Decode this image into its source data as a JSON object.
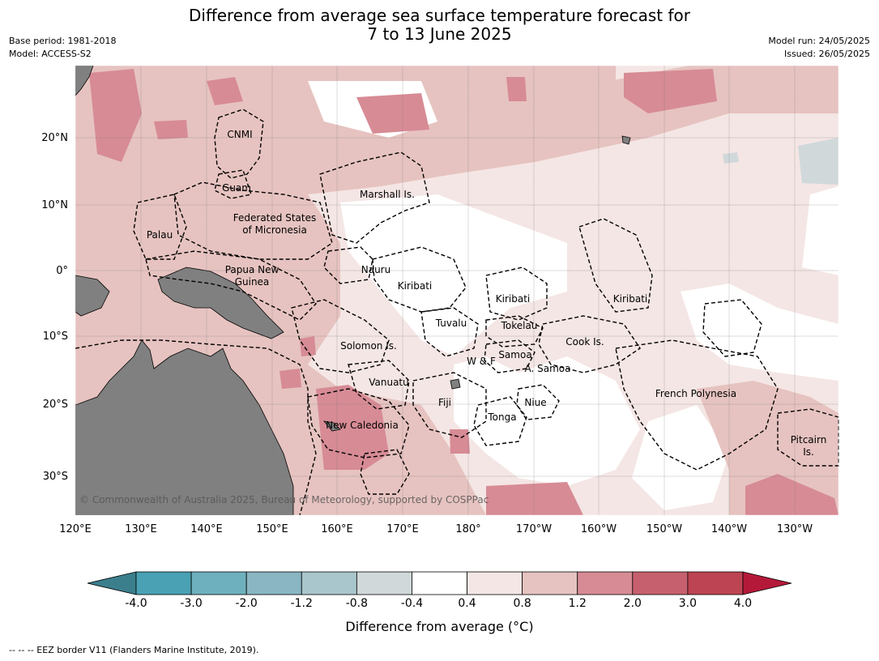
{
  "title": {
    "line1": "Difference from average sea surface temperature forecast for",
    "line2": "7 to 13 June 2025"
  },
  "meta": {
    "base_period": "Base period: 1981-2018",
    "model": "Model: ACCESS-S2",
    "model_run": "Model run: 24/05/2025",
    "issued": "Issued: 26/05/2025"
  },
  "map": {
    "lon_labels": [
      "120°E",
      "130°E",
      "140°E",
      "150°E",
      "160°E",
      "170°E",
      "180°",
      "170°W",
      "160°W",
      "150°W",
      "140°W",
      "130°W"
    ],
    "lat_labels": [
      "20°N",
      "10°N",
      "0°",
      "10°S",
      "20°S",
      "30°S"
    ],
    "copyright": "© Commonwealth of Australia 2025, Bureau of Meteorology, supported by COSPPac",
    "regions": [
      {
        "name": "cnmi",
        "label": "CNMI"
      },
      {
        "name": "guam",
        "label": "Guam"
      },
      {
        "name": "marshall",
        "label": "Marshall Is."
      },
      {
        "name": "fsm1",
        "label": "Federated States"
      },
      {
        "name": "fsm2",
        "label": "of Micronesia"
      },
      {
        "name": "palau",
        "label": "Palau"
      },
      {
        "name": "png1",
        "label": "Papua New"
      },
      {
        "name": "png2",
        "label": "Guinea"
      },
      {
        "name": "nauru",
        "label": "Nauru"
      },
      {
        "name": "kiribati-w",
        "label": "Kiribati"
      },
      {
        "name": "kiribati-c",
        "label": "Kiribati"
      },
      {
        "name": "kiribati-e",
        "label": "Kiribati"
      },
      {
        "name": "tuvalu",
        "label": "Tuvalu"
      },
      {
        "name": "tokelau",
        "label": "Tokelau"
      },
      {
        "name": "solomon",
        "label": "Solomon Is."
      },
      {
        "name": "samoa",
        "label": "Samoa"
      },
      {
        "name": "wf",
        "label": "W & F"
      },
      {
        "name": "asamoa",
        "label": "A. Samoa"
      },
      {
        "name": "cook",
        "label": "Cook Is."
      },
      {
        "name": "vanuatu",
        "label": "Vanuatu"
      },
      {
        "name": "fiji",
        "label": "Fiji"
      },
      {
        "name": "niue",
        "label": "Niue"
      },
      {
        "name": "tonga",
        "label": "Tonga"
      },
      {
        "name": "frpoly",
        "label": "French Polynesia"
      },
      {
        "name": "newcal",
        "label": "New Caledonia"
      },
      {
        "name": "pitcairn1",
        "label": "Pitcairn"
      },
      {
        "name": "pitcairn2",
        "label": "Is."
      }
    ]
  },
  "colorbar": {
    "label": "Difference from average (°C)",
    "ticks": [
      "-4.0",
      "-3.0",
      "-2.0",
      "-1.2",
      "-0.8",
      "-0.4",
      "0.4",
      "0.8",
      "1.2",
      "2.0",
      "3.0",
      "4.0"
    ],
    "colors": [
      "#3b7f8d",
      "#4aa1b4",
      "#6fb0be",
      "#89b6c2",
      "#a8c6cb",
      "#d0d8da",
      "#ffffff",
      "#f4e6e4",
      "#e6c3c0",
      "#d78b95",
      "#c7606e",
      "#bd4453",
      "#b5193a"
    ]
  },
  "footer": "--  --  -- EEZ border V11 (Flanders Marine Institute, 2019)."
}
